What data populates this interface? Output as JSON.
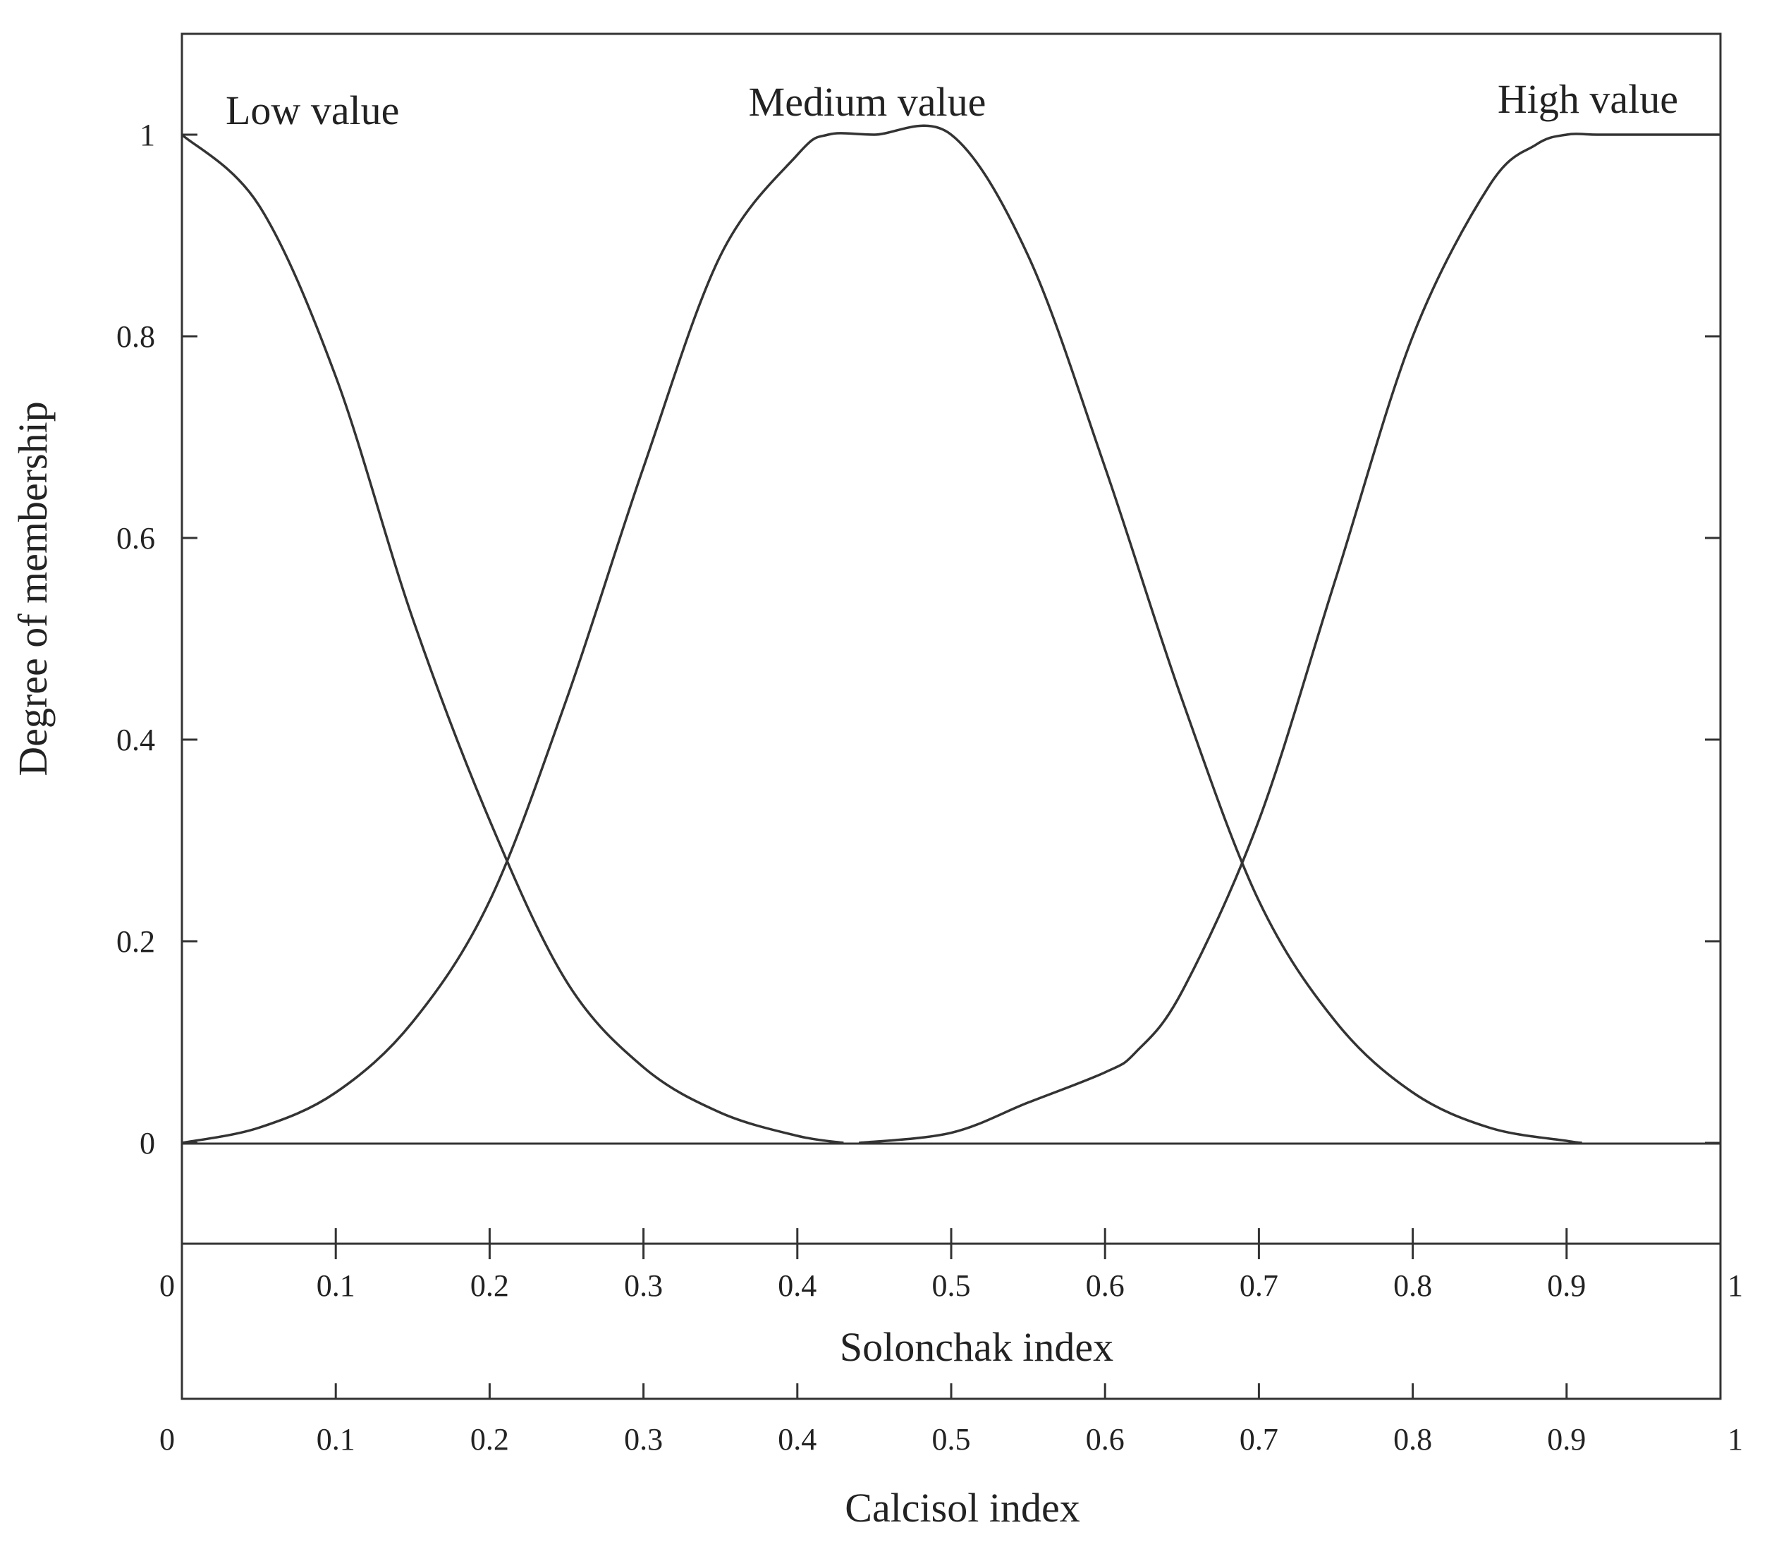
{
  "chart_data": {
    "type": "line",
    "xlabel": "Solonchak index",
    "xlabel2": "Calcisol index",
    "ylabel": "Degree of membership",
    "xlim": [
      0,
      1
    ],
    "ylim": [
      -0.1,
      1.1
    ],
    "x_ticks": [
      "0",
      "0.1",
      "0.2",
      "0.3",
      "0.4",
      "0.5",
      "0.6",
      "0.7",
      "0.8",
      "0.9",
      "1"
    ],
    "y_ticks": [
      "0",
      "0.2",
      "0.4",
      "0.6",
      "0.8",
      "1"
    ],
    "grid": false,
    "series": [
      {
        "name": "Low value",
        "x": [
          0,
          0.05,
          0.1,
          0.15,
          0.2,
          0.25,
          0.3,
          0.35,
          0.4,
          0.43
        ],
        "y": [
          1,
          0.93,
          0.76,
          0.52,
          0.32,
          0.16,
          0.075,
          0.03,
          0.007,
          0
        ]
      },
      {
        "name": "Medium value",
        "x": [
          0,
          0.05,
          0.1,
          0.15,
          0.2,
          0.25,
          0.3,
          0.35,
          0.4,
          0.42,
          0.45,
          0.5,
          0.55,
          0.6,
          0.65,
          0.7,
          0.75,
          0.8,
          0.85,
          0.9,
          0.91
        ],
        "y": [
          0,
          0.015,
          0.05,
          0.12,
          0.24,
          0.44,
          0.67,
          0.88,
          0.98,
          1,
          1,
          1,
          0.88,
          0.67,
          0.44,
          0.24,
          0.12,
          0.05,
          0.015,
          0.002,
          0
        ]
      },
      {
        "name": "High value",
        "x": [
          0.44,
          0.5,
          0.55,
          0.6,
          0.62,
          0.65,
          0.7,
          0.75,
          0.8,
          0.85,
          0.88,
          0.9,
          0.92,
          0.95,
          1
        ],
        "y": [
          0,
          0.01,
          0.04,
          0.07,
          0.09,
          0.15,
          0.32,
          0.56,
          0.8,
          0.95,
          0.99,
          1,
          1,
          1,
          1
        ]
      }
    ]
  }
}
